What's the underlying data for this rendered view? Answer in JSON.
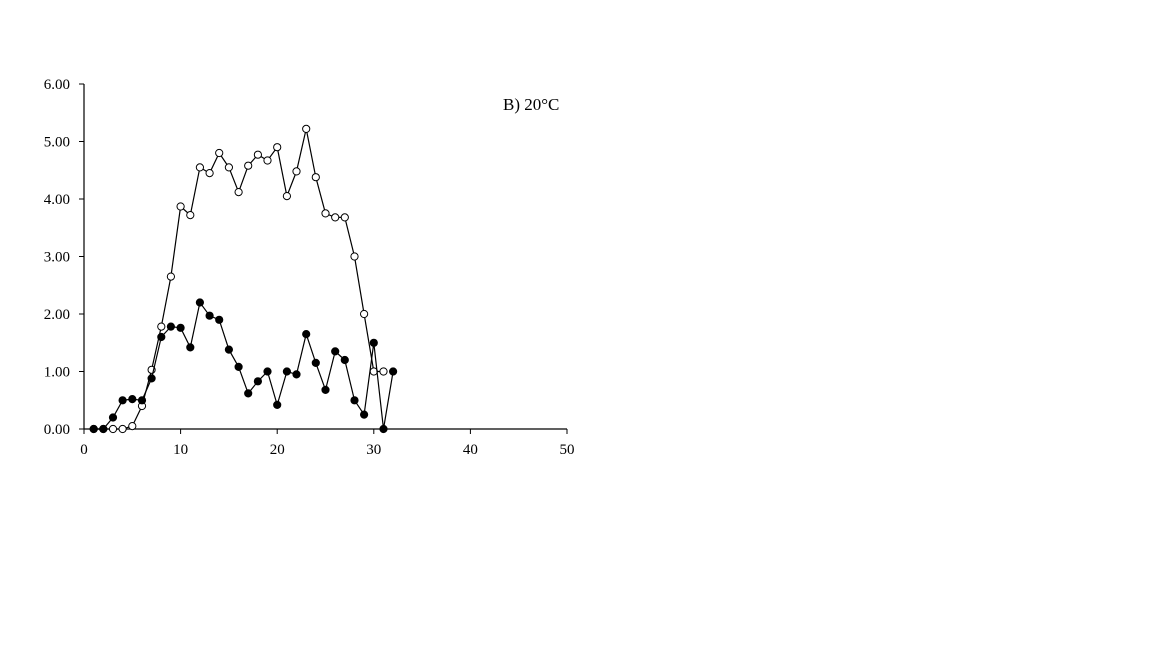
{
  "chart_data": {
    "type": "line",
    "title": "",
    "xlabel": "",
    "ylabel": "",
    "annotation": "B) 20°C",
    "xlim": [
      0,
      50
    ],
    "ylim": [
      0,
      6
    ],
    "x_ticks": [
      0,
      10,
      20,
      30,
      40,
      50
    ],
    "y_ticks": [
      0,
      1,
      2,
      3,
      4,
      5,
      6
    ],
    "y_tick_labels": [
      "0.00",
      "1.00",
      "2.00",
      "3.00",
      "4.00",
      "5.00",
      "6.00"
    ],
    "grid": false,
    "legend": "none",
    "series": [
      {
        "marker": "open-circle",
        "x": [
          1,
          2,
          3,
          4,
          5,
          6,
          7,
          8,
          9,
          10,
          11,
          12,
          13,
          14,
          15,
          16,
          17,
          18,
          19,
          20,
          21,
          22,
          23,
          24,
          25,
          26,
          27,
          28,
          29,
          30,
          31
        ],
        "y": [
          0.0,
          0.0,
          0.0,
          0.0,
          0.05,
          0.4,
          1.03,
          1.78,
          2.65,
          3.87,
          3.72,
          4.55,
          4.45,
          4.8,
          4.55,
          4.12,
          4.58,
          4.77,
          4.67,
          4.9,
          4.05,
          4.48,
          5.22,
          4.38,
          3.75,
          3.68,
          3.68,
          3.0,
          2.0,
          1.0,
          1.0
        ]
      },
      {
        "marker": "filled-circle",
        "x": [
          1,
          2,
          3,
          4,
          5,
          6,
          7,
          8,
          9,
          10,
          11,
          12,
          13,
          14,
          15,
          16,
          17,
          18,
          19,
          20,
          21,
          22,
          23,
          24,
          25,
          26,
          27,
          28,
          29,
          30,
          31,
          32
        ],
        "y": [
          0.0,
          0.0,
          0.2,
          0.5,
          0.52,
          0.5,
          0.88,
          1.6,
          1.78,
          1.76,
          1.42,
          2.2,
          1.97,
          1.9,
          1.38,
          1.08,
          0.62,
          0.83,
          1.0,
          0.42,
          1.0,
          0.95,
          1.65,
          1.15,
          0.68,
          1.35,
          1.2,
          0.5,
          0.25,
          1.5,
          0.0,
          1.0
        ]
      }
    ]
  }
}
